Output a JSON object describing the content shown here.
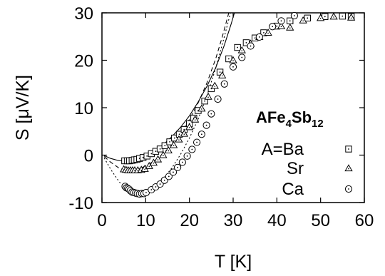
{
  "chart_data": {
    "type": "scatter",
    "title": "",
    "xlabel": "T [K]",
    "ylabel": "S [μV/K]",
    "xlim": [
      0,
      60
    ],
    "ylim": [
      -10,
      30
    ],
    "xticks": [
      "0",
      "10",
      "20",
      "30",
      "40",
      "50",
      "60"
    ],
    "yticks": [
      "-10",
      "0",
      "10",
      "20",
      "30"
    ],
    "grid": false,
    "legend_position": "right",
    "annotation": {
      "main": "AFe",
      "sub1": "4",
      "mid": "Sb",
      "sub2": "12"
    },
    "series": [
      {
        "name": "A=Ba",
        "marker": "square",
        "points": [
          [
            5.2,
            -1.2
          ],
          [
            5.8,
            -1.2
          ],
          [
            6.3,
            -1.2
          ],
          [
            6.9,
            -1.1
          ],
          [
            7.4,
            -1.0
          ],
          [
            8.0,
            -0.9
          ],
          [
            8.6,
            -0.7
          ],
          [
            9.4,
            -0.5
          ],
          [
            10.3,
            -0.2
          ],
          [
            11.3,
            0.3
          ],
          [
            12.3,
            0.8
          ],
          [
            13.3,
            1.3
          ],
          [
            14.4,
            2.0
          ],
          [
            15.5,
            2.8
          ],
          [
            16.6,
            3.6
          ],
          [
            17.7,
            4.4
          ],
          [
            18.8,
            5.4
          ],
          [
            20.0,
            6.6
          ],
          [
            21.0,
            7.8
          ],
          [
            22.0,
            9.4
          ],
          [
            23.5,
            11.4
          ],
          [
            25.0,
            14.0
          ],
          [
            27.0,
            17.5
          ],
          [
            29.0,
            20.3
          ],
          [
            31.0,
            22.7
          ],
          [
            33.0,
            23.7
          ],
          [
            35.0,
            24.7
          ],
          [
            37.0,
            25.8
          ],
          [
            40.0,
            27.2
          ],
          [
            43.0,
            28.3
          ],
          [
            47.0,
            28.9
          ],
          [
            51.0,
            29.2
          ],
          [
            55.0,
            29.3
          ],
          [
            57.0,
            29.2
          ]
        ]
      },
      {
        "name": "Sr",
        "marker": "triangle",
        "points": [
          [
            5.0,
            -3.0
          ],
          [
            5.5,
            -3.1
          ],
          [
            6.0,
            -3.2
          ],
          [
            6.5,
            -3.2
          ],
          [
            7.0,
            -3.2
          ],
          [
            7.5,
            -3.2
          ],
          [
            8.2,
            -3.2
          ],
          [
            9.0,
            -3.1
          ],
          [
            9.8,
            -2.9
          ],
          [
            10.8,
            -2.3
          ],
          [
            11.8,
            -1.6
          ],
          [
            12.8,
            -0.9
          ],
          [
            14.0,
            0.0
          ],
          [
            15.2,
            1.0
          ],
          [
            16.4,
            2.1
          ],
          [
            17.6,
            3.3
          ],
          [
            18.8,
            4.5
          ],
          [
            20.0,
            5.9
          ],
          [
            21.3,
            7.5
          ],
          [
            22.8,
            9.8
          ],
          [
            24.3,
            12.3
          ],
          [
            25.8,
            14.6
          ],
          [
            27.5,
            16.8
          ],
          [
            30.0,
            20.0
          ],
          [
            32.0,
            22.1
          ],
          [
            34.0,
            23.5
          ],
          [
            36.0,
            24.9
          ],
          [
            38.0,
            25.8
          ],
          [
            41.0,
            27.2
          ],
          [
            43.0,
            26.9
          ],
          [
            46.0,
            28.4
          ],
          [
            50.0,
            28.9
          ],
          [
            53.0,
            29.2
          ],
          [
            57.0,
            29.0
          ]
        ]
      },
      {
        "name": "Ca",
        "marker": "circle",
        "points": [
          [
            5.3,
            -6.6
          ],
          [
            5.6,
            -6.9
          ],
          [
            5.9,
            -7.0
          ],
          [
            6.2,
            -7.2
          ],
          [
            6.5,
            -7.5
          ],
          [
            6.9,
            -7.8
          ],
          [
            7.3,
            -7.9
          ],
          [
            7.7,
            -8.0
          ],
          [
            8.1,
            -8.1
          ],
          [
            8.6,
            -8.2
          ],
          [
            9.1,
            -8.1
          ],
          [
            9.6,
            -8.1
          ],
          [
            10.1,
            -7.9
          ],
          [
            11.3,
            -7.3
          ],
          [
            12.3,
            -6.7
          ],
          [
            13.3,
            -6.1
          ],
          [
            14.3,
            -5.3
          ],
          [
            15.3,
            -4.5
          ],
          [
            16.3,
            -3.6
          ],
          [
            17.3,
            -2.6
          ],
          [
            18.4,
            -1.5
          ],
          [
            19.5,
            -0.2
          ],
          [
            20.6,
            1.2
          ],
          [
            21.7,
            2.7
          ],
          [
            22.8,
            4.4
          ],
          [
            23.9,
            6.3
          ],
          [
            25.0,
            8.7
          ],
          [
            26.5,
            11.8
          ],
          [
            28.0,
            15.0
          ],
          [
            30.0,
            18.6
          ],
          [
            32.0,
            20.6
          ],
          [
            34.0,
            23.0
          ],
          [
            36.0,
            24.9
          ],
          [
            39.0,
            27.1
          ],
          [
            41.0,
            28.3
          ],
          [
            44.0,
            29.4
          ]
        ]
      }
    ],
    "fit_curves": [
      {
        "series": "A=Ba",
        "style": "solid",
        "points": [
          [
            0.5,
            -0.1
          ],
          [
            2,
            -0.7
          ],
          [
            4,
            -1.2
          ],
          [
            6,
            -1.1
          ],
          [
            8,
            -0.8
          ],
          [
            10,
            -0.1
          ],
          [
            12,
            0.9
          ],
          [
            14,
            2.2
          ],
          [
            16,
            3.9
          ],
          [
            18,
            5.9
          ],
          [
            20,
            8.3
          ],
          [
            22,
            11.2
          ],
          [
            24,
            14.5
          ],
          [
            26,
            18.4
          ],
          [
            28,
            23.2
          ],
          [
            29.5,
            27.5
          ],
          [
            30.3,
            30
          ]
        ]
      },
      {
        "series": "Sr",
        "style": "dashed",
        "points": [
          [
            0.5,
            -0.3
          ],
          [
            2,
            -1.5
          ],
          [
            4,
            -2.8
          ],
          [
            6,
            -3.2
          ],
          [
            8,
            -3.0
          ],
          [
            10,
            -2.3
          ],
          [
            12,
            -1.2
          ],
          [
            14,
            0.3
          ],
          [
            16,
            2.2
          ],
          [
            18,
            4.6
          ],
          [
            20,
            7.5
          ],
          [
            22,
            11.0
          ],
          [
            24,
            15.2
          ],
          [
            26,
            20.3
          ],
          [
            27.5,
            24.9
          ],
          [
            29.0,
            30
          ]
        ]
      },
      {
        "series": "Ca",
        "style": "dotted",
        "points": [
          [
            0.5,
            -0.6
          ],
          [
            2,
            -3.0
          ],
          [
            4,
            -5.7
          ],
          [
            6,
            -7.3
          ],
          [
            8,
            -8.0
          ],
          [
            10,
            -7.8
          ],
          [
            12,
            -6.7
          ],
          [
            14,
            -5.0
          ],
          [
            16,
            -2.7
          ],
          [
            18,
            0.2
          ],
          [
            20,
            3.6
          ],
          [
            22,
            7.6
          ],
          [
            24,
            12.5
          ],
          [
            26,
            18.3
          ],
          [
            28,
            25.0
          ],
          [
            29.4,
            30
          ]
        ]
      }
    ]
  }
}
